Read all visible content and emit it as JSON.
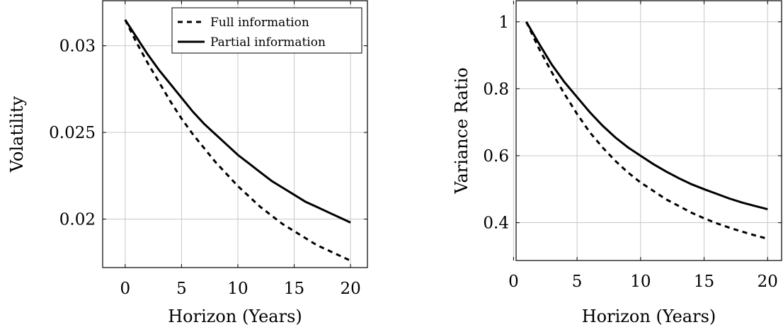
{
  "chart_data": [
    {
      "type": "line",
      "xlabel": "Horizon (Years)",
      "ylabel": "Volatility",
      "xlim": [
        -2,
        21.5
      ],
      "ylim": [
        0.0172,
        0.0326
      ],
      "xticks": [
        0,
        5,
        10,
        15,
        20
      ],
      "xtick_labels": [
        "0",
        "5",
        "10",
        "15",
        "20"
      ],
      "yticks": [
        0.02,
        0.025,
        0.03
      ],
      "ytick_labels": [
        "0.02",
        "0.025",
        "0.03"
      ],
      "grid": true,
      "legend_position": "top-right",
      "series": [
        {
          "name": "Full information",
          "style": "dashed",
          "x": [
            0,
            1,
            2,
            3,
            4,
            5,
            6,
            7,
            8,
            9,
            10,
            11,
            12,
            13,
            14,
            15,
            16,
            17,
            18,
            19,
            20
          ],
          "y": [
            0.0315,
            0.0302,
            0.029,
            0.0279,
            0.0268,
            0.0258,
            0.0249,
            0.0241,
            0.0233,
            0.0226,
            0.0219,
            0.0213,
            0.0207,
            0.0202,
            0.0197,
            0.0193,
            0.0189,
            0.0185,
            0.0182,
            0.0179,
            0.0176
          ]
        },
        {
          "name": "Partial information",
          "style": "solid",
          "x": [
            0,
            1,
            2,
            3,
            4,
            5,
            6,
            7,
            8,
            9,
            10,
            11,
            12,
            13,
            14,
            15,
            16,
            17,
            18,
            19,
            20
          ],
          "y": [
            0.0315,
            0.0305,
            0.0295,
            0.0286,
            0.0278,
            0.027,
            0.0262,
            0.0255,
            0.0249,
            0.0243,
            0.0237,
            0.0232,
            0.0227,
            0.0222,
            0.0218,
            0.0214,
            0.021,
            0.0207,
            0.0204,
            0.0201,
            0.0198
          ]
        }
      ]
    },
    {
      "type": "line",
      "xlabel": "Horizon (Years)",
      "ylabel": "Variance Ratio",
      "xlim": [
        0.2,
        21.1
      ],
      "ylim": [
        0.287,
        1.063
      ],
      "xticks": [
        0,
        5,
        10,
        15,
        20
      ],
      "xtick_labels": [
        "0",
        "5",
        "10",
        "15",
        "20"
      ],
      "yticks": [
        0.4,
        0.6,
        0.8,
        1
      ],
      "ytick_labels": [
        "0.4",
        "0.6",
        "0.8",
        "1"
      ],
      "grid": true,
      "series": [
        {
          "name": "Full information",
          "style": "dashed",
          "x": [
            1,
            2,
            3,
            4,
            5,
            6,
            7,
            8,
            9,
            10,
            11,
            12,
            13,
            14,
            15,
            16,
            17,
            18,
            19,
            20
          ],
          "y": [
            1.0,
            0.92,
            0.85,
            0.785,
            0.725,
            0.67,
            0.625,
            0.585,
            0.55,
            0.52,
            0.495,
            0.47,
            0.45,
            0.43,
            0.413,
            0.398,
            0.385,
            0.373,
            0.362,
            0.352
          ]
        },
        {
          "name": "Partial information",
          "style": "solid",
          "x": [
            1,
            2,
            3,
            4,
            5,
            6,
            7,
            8,
            9,
            10,
            11,
            12,
            13,
            14,
            15,
            16,
            17,
            18,
            19,
            20
          ],
          "y": [
            1.0,
            0.935,
            0.873,
            0.82,
            0.775,
            0.73,
            0.69,
            0.655,
            0.625,
            0.6,
            0.575,
            0.553,
            0.533,
            0.515,
            0.5,
            0.486,
            0.472,
            0.46,
            0.45,
            0.44
          ]
        }
      ]
    }
  ]
}
